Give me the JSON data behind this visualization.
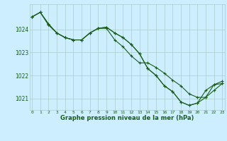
{
  "background_color": "#cceeff",
  "grid_color": "#aacccc",
  "line_color": "#1a5c1a",
  "xlabel": "Graphe pression niveau de la mer (hPa)",
  "hours": [
    0,
    1,
    2,
    3,
    4,
    5,
    6,
    7,
    8,
    9,
    10,
    11,
    12,
    13,
    14,
    15,
    16,
    17,
    18,
    19,
    20,
    21,
    22,
    23
  ],
  "series": [
    [
      1024.55,
      1024.75,
      1024.25,
      1023.85,
      1023.65,
      1023.55,
      1023.55,
      1023.85,
      1024.05,
      1024.05,
      1023.55,
      1023.25,
      1022.85,
      1022.55,
      1022.55,
      1022.35,
      1022.1,
      1021.8,
      1021.5,
      1021.15,
      1021.05,
      1021.05,
      1021.6,
      1021.7
    ],
    [
      1024.55,
      1024.75,
      1024.2,
      1023.85,
      1023.65,
      1023.55,
      1023.55,
      1023.85,
      1024.05,
      1024.1,
      1023.85,
      1023.65,
      1023.45,
      1023.05,
      1022.35,
      1022.05,
      1021.65,
      1021.4,
      1020.9,
      1020.75,
      1020.85,
      1021.05,
      1021.35,
      1021.7
    ],
    [
      1024.55,
      1024.75,
      1024.2,
      1023.85,
      1023.65,
      1023.55,
      1023.55,
      1023.85,
      1024.05,
      1024.1,
      1023.85,
      1023.65,
      1023.45,
      1023.05,
      1022.35,
      1022.05,
      1021.65,
      1021.4,
      1020.9,
      1020.75,
      1020.85,
      1021.35,
      1021.65,
      1021.65
    ]
  ],
  "ylim": [
    1020.5,
    1025.1
  ],
  "yticks": [
    1021,
    1022,
    1023,
    1024
  ],
  "marker": "+"
}
